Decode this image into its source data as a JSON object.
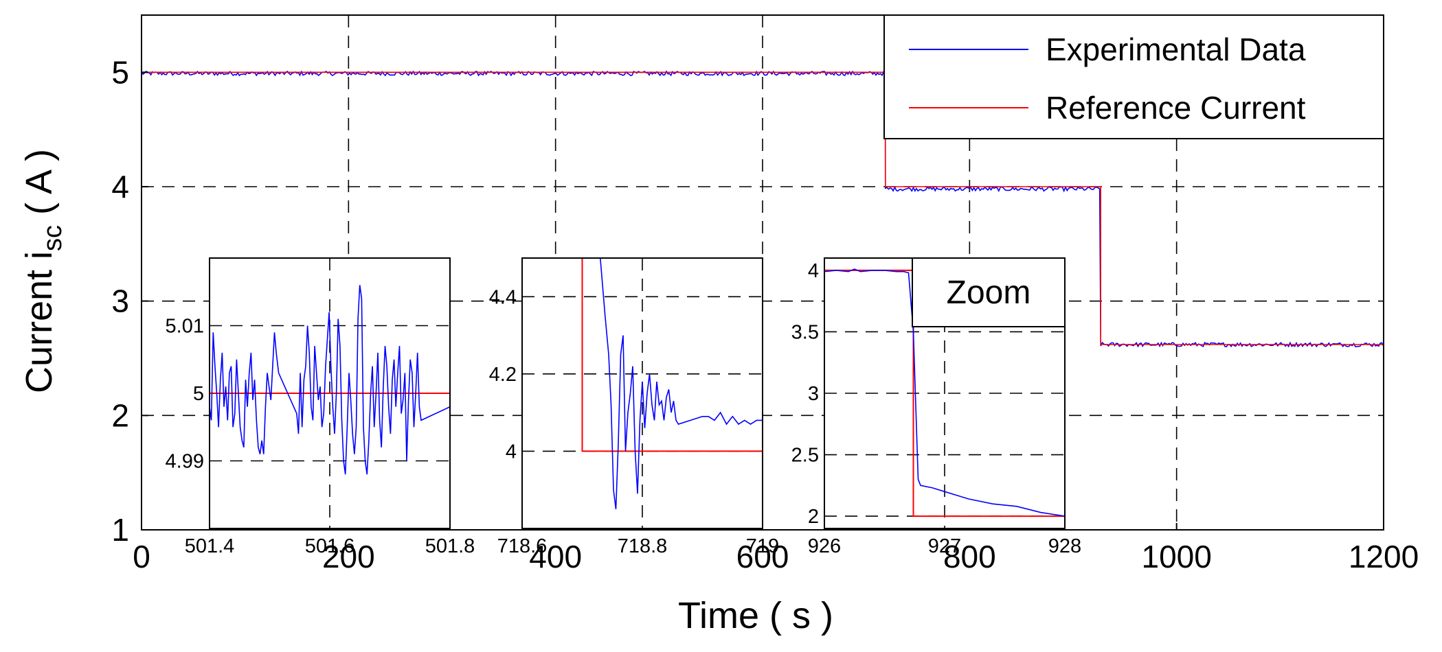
{
  "chart_data": [
    {
      "id": "main",
      "type": "line",
      "xlabel": "Time ( s )",
      "ylabel": "Current i",
      "ylabel_subscript": "sc",
      "ylabel_suffix": " ( A )",
      "xlim": [
        0,
        1200
      ],
      "ylim": [
        1,
        5.5
      ],
      "xticks": [
        0,
        200,
        400,
        600,
        800,
        1000,
        1200
      ],
      "yticks": [
        1,
        2,
        3,
        4,
        5
      ],
      "grid": true,
      "legend": {
        "placement": "top-right",
        "entries": [
          "Experimental Data",
          "Reference Current"
        ]
      },
      "series": [
        {
          "name": "Experimental Data",
          "color": "#0000ff",
          "x": [
            0,
            718.7,
            718.7,
            926.7,
            926.7,
            1200
          ],
          "y": [
            4.99,
            4.99,
            3.98,
            3.98,
            2.62,
            2.62
          ],
          "noise": 0.018
        },
        {
          "name": "Reference Current",
          "color": "#ff0000",
          "x": [
            0,
            718.7,
            718.7,
            926.7,
            926.7,
            1200
          ],
          "y": [
            5,
            5,
            4,
            4,
            2.62,
            2.62
          ]
        }
      ]
    },
    {
      "id": "inset1",
      "type": "line",
      "xlim": [
        501.4,
        501.8
      ],
      "ylim": [
        4.98,
        5.02
      ],
      "xticks": [
        501.4,
        501.6,
        501.8
      ],
      "xtick_labels": [
        "501.4",
        "501.6",
        "501.8"
      ],
      "yticks": [
        4.99,
        5,
        5.01
      ],
      "ytick_labels": [
        "4.99",
        "5",
        "5.01"
      ],
      "grid": true,
      "series": [
        {
          "name": "Experimental Data",
          "color": "#0000ff",
          "x": [
            501.4,
            501.403,
            501.406,
            501.409,
            501.412,
            501.415,
            501.418,
            501.421,
            501.424,
            501.427,
            501.43,
            501.433,
            501.436,
            501.439,
            501.442,
            501.445,
            501.448,
            501.451,
            501.454,
            501.457,
            501.46,
            501.463,
            501.466,
            501.469,
            501.472,
            501.475,
            501.478,
            501.481,
            501.484,
            501.487,
            501.49,
            501.493,
            501.496,
            501.499,
            501.502,
            501.505,
            501.508,
            501.511,
            501.515,
            501.545,
            501.548,
            501.551,
            501.554,
            501.557,
            501.56,
            501.563,
            501.566,
            501.569,
            501.572,
            501.575,
            501.578,
            501.581,
            501.584,
            501.587,
            501.59,
            501.593,
            501.596,
            501.599,
            501.602,
            501.605,
            501.608,
            501.611,
            501.614,
            501.617,
            501.62,
            501.623,
            501.626,
            501.629,
            501.632,
            501.635,
            501.638,
            501.641,
            501.644,
            501.647,
            501.65,
            501.653,
            501.656,
            501.659,
            501.662,
            501.665,
            501.668,
            501.671,
            501.674,
            501.677,
            501.68,
            501.683,
            501.686,
            501.689,
            501.692,
            501.695,
            501.698,
            501.701,
            501.704,
            501.707,
            501.71,
            501.713,
            501.716,
            501.719,
            501.722,
            501.725,
            501.728,
            501.731,
            501.734,
            501.737,
            501.74,
            501.743,
            501.746,
            501.749,
            501.752,
            501.8
          ],
          "y": [
            4.998,
            4.996,
            5.009,
            5.004,
            5.0,
            4.995,
            5.002,
            5.006,
            4.998,
            5.001,
            4.996,
            5.003,
            5.004,
            4.995,
            4.997,
            5.005,
            5.0,
            4.995,
            4.993,
            4.992,
            5.002,
            4.998,
            5.003,
            5.006,
            4.999,
            5.002,
            4.996,
            4.992,
            4.991,
            4.993,
            4.991,
            4.998,
            5.003,
            5.001,
            4.999,
            5.004,
            5.009,
            5.006,
            5.003,
            4.997,
            4.994,
            5.003,
            4.995,
            5.002,
            5.004,
            5.01,
            5.006,
            4.998,
            4.996,
            5.007,
            5.003,
            4.999,
            5.001,
            4.995,
            4.997,
            5.004,
            5.008,
            5.012,
            5.004,
            4.998,
            4.994,
            5.0,
            5.011,
            5.007,
            4.996,
            4.99,
            4.988,
            4.995,
            5.003,
            4.999,
            4.994,
            4.991,
            4.995,
            5.011,
            5.016,
            5.014,
            4.995,
            4.99,
            4.988,
            4.993,
            5.0,
            5.004,
            4.995,
            5.0,
            5.006,
            4.996,
            4.992,
            5.001,
            5.007,
            5.004,
            4.998,
            4.994,
            5.002,
            5.005,
            4.998,
            5.003,
            5.007,
            4.997,
            4.999,
            5.003,
            4.99,
            4.999,
            5.005,
            5.003,
            4.995,
            5.0,
            5.006,
            4.998,
            4.996,
            4.998
          ]
        },
        {
          "name": "Reference Current",
          "color": "#ff0000",
          "x": [
            501.4,
            501.8
          ],
          "y": [
            5,
            5
          ]
        }
      ]
    },
    {
      "id": "inset2",
      "type": "line",
      "xlim": [
        718.6,
        719
      ],
      "ylim": [
        3.8,
        4.5
      ],
      "xticks": [
        718.6,
        718.8,
        719
      ],
      "xtick_labels": [
        "718.6",
        "718.8",
        "719"
      ],
      "yticks": [
        4,
        4.2,
        4.4
      ],
      "ytick_labels": [
        "4",
        "4.2",
        "4.4"
      ],
      "grid": true,
      "series": [
        {
          "name": "Experimental Data",
          "color": "#0000ff",
          "x": [
            718.73,
            718.738,
            718.744,
            718.748,
            718.752,
            718.756,
            718.76,
            718.764,
            718.768,
            718.772,
            718.776,
            718.78,
            718.784,
            718.788,
            718.792,
            718.796,
            718.8,
            718.804,
            718.808,
            718.812,
            718.816,
            718.82,
            718.824,
            718.828,
            718.832,
            718.836,
            718.84,
            718.844,
            718.848,
            718.852,
            718.856,
            718.86,
            718.9,
            718.91,
            718.92,
            718.93,
            718.94,
            718.95,
            718.96,
            718.97,
            718.98,
            718.99,
            719.0
          ],
          "y": [
            4.5,
            4.35,
            4.25,
            4.12,
            3.9,
            3.85,
            4.02,
            4.25,
            4.3,
            4.0,
            4.1,
            4.15,
            4.22,
            4.0,
            3.89,
            4.08,
            4.18,
            4.06,
            4.15,
            4.2,
            4.12,
            4.08,
            4.18,
            4.12,
            4.13,
            4.08,
            4.14,
            4.16,
            4.1,
            4.13,
            4.08,
            4.07,
            4.09,
            4.09,
            4.08,
            4.1,
            4.07,
            4.09,
            4.07,
            4.08,
            4.07,
            4.08,
            4.08
          ]
        },
        {
          "name": "Reference Current",
          "color": "#ff0000",
          "x": [
            718.7,
            718.7,
            719
          ],
          "y": [
            4.5,
            4,
            4
          ]
        }
      ]
    },
    {
      "id": "inset3",
      "type": "line",
      "xlim": [
        926,
        928
      ],
      "ylim": [
        1.9,
        4.1
      ],
      "xticks": [
        926,
        927,
        928
      ],
      "xtick_labels": [
        "926",
        "927",
        "928"
      ],
      "yticks": [
        2,
        2.5,
        3,
        3.5,
        4
      ],
      "ytick_labels": [
        "2",
        "2.5",
        "3",
        "3.5",
        "4"
      ],
      "grid": true,
      "annotation": "Zoom",
      "series": [
        {
          "name": "Experimental Data",
          "color": "#0000ff",
          "x": [
            926.0,
            926.1,
            926.2,
            926.25,
            926.3,
            926.4,
            926.5,
            926.6,
            926.66,
            926.7,
            926.74,
            926.78,
            926.8,
            926.9,
            927.0,
            927.2,
            927.4,
            927.6,
            927.8,
            928.0
          ],
          "y": [
            3.99,
            4.0,
            3.99,
            4.01,
            3.99,
            4.0,
            4.0,
            3.99,
            3.99,
            3.98,
            3.5,
            2.3,
            2.25,
            2.23,
            2.2,
            2.14,
            2.1,
            2.08,
            2.03,
            2.0
          ]
        },
        {
          "name": "Reference Current",
          "color": "#ff0000",
          "x": [
            926.0,
            926.74,
            926.74,
            928.0
          ],
          "y": [
            4,
            4,
            2,
            2
          ]
        }
      ]
    }
  ]
}
